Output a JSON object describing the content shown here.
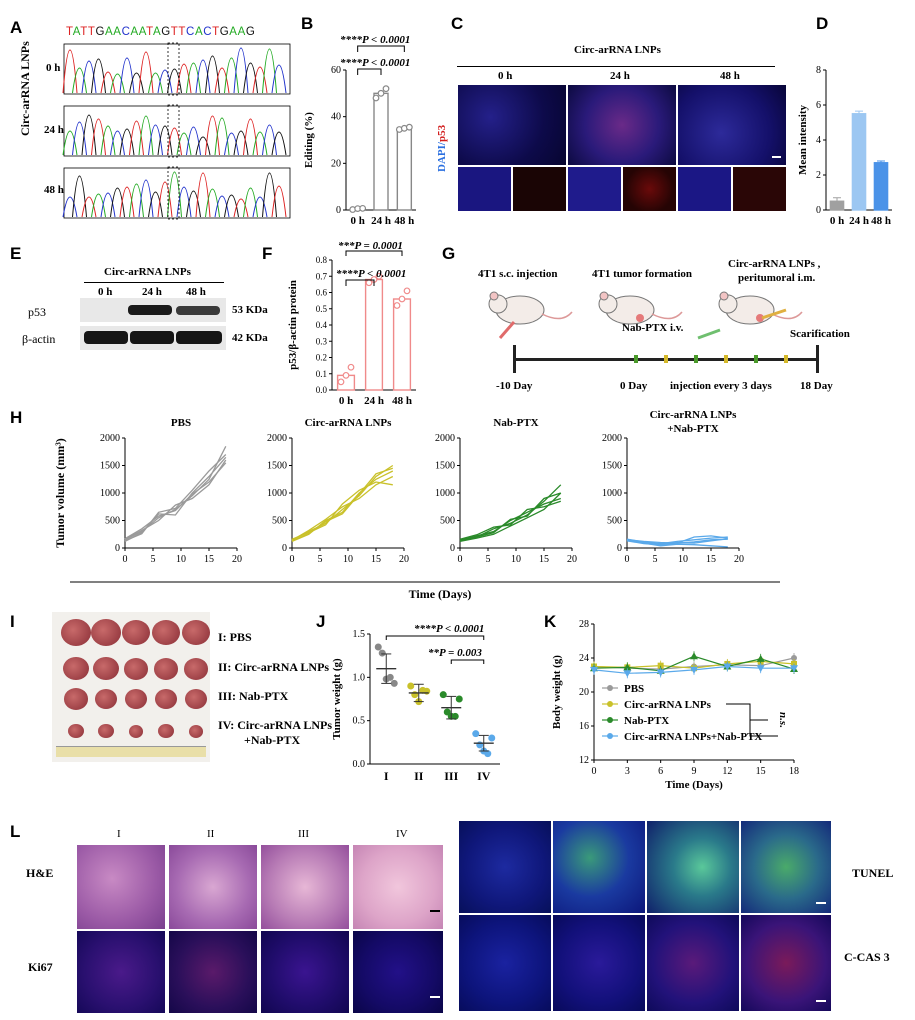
{
  "panels": {
    "A": "A",
    "B": "B",
    "C": "C",
    "D": "D",
    "E": "E",
    "F": "F",
    "G": "G",
    "H": "H",
    "I": "I",
    "J": "J",
    "K": "K",
    "L": "L"
  },
  "panelA": {
    "sequence": [
      [
        "T",
        "#d22"
      ],
      [
        "A",
        "#2a2"
      ],
      [
        "T",
        "#d22"
      ],
      [
        "T",
        "#d22"
      ],
      [
        "G",
        "#111"
      ],
      [
        "A",
        "#2a2"
      ],
      [
        "A",
        "#2a2"
      ],
      [
        "C",
        "#23c"
      ],
      [
        "A",
        "#2a2"
      ],
      [
        "A",
        "#2a2"
      ],
      [
        "T",
        "#d22"
      ],
      [
        "A",
        "#2a2"
      ],
      [
        "G",
        "#111"
      ],
      [
        "T",
        "#d22"
      ],
      [
        "T",
        "#d22"
      ],
      [
        "C",
        "#23c"
      ],
      [
        "A",
        "#2a2"
      ],
      [
        "C",
        "#23c"
      ],
      [
        "T",
        "#d22"
      ],
      [
        "G",
        "#111"
      ],
      [
        "A",
        "#2a2"
      ],
      [
        "A",
        "#2a2"
      ],
      [
        "G",
        "#111"
      ]
    ],
    "group_label": "Circ-arRNA LNPs",
    "rows": [
      "0 h",
      "24 h",
      "48 h"
    ]
  },
  "chart_data": [
    {
      "id": "B",
      "type": "bar",
      "categories": [
        "0 h",
        "24 h",
        "48 h"
      ],
      "values": [
        0.5,
        50,
        35
      ],
      "points": [
        [
          0.2,
          0.6,
          0.7
        ],
        [
          48,
          50,
          52
        ],
        [
          34.5,
          35,
          35.5
        ]
      ],
      "ylabel": "Editing (%)",
      "ylim": [
        0,
        60
      ],
      "yticks": [
        0,
        20,
        40,
        60
      ],
      "annotations": [
        "****P < 0.0001",
        "****P < 0.0001"
      ],
      "color": "#888888"
    },
    {
      "id": "D",
      "type": "bar",
      "categories": [
        "0 h",
        "24 h",
        "48 h"
      ],
      "values": [
        0.5,
        5.5,
        2.7
      ],
      "errors": [
        0.2,
        0.15,
        0.1
      ],
      "ylabel": "Mean intensity",
      "ylim": [
        0,
        8
      ],
      "yticks": [
        0,
        2,
        4,
        6,
        8
      ],
      "colors": [
        "#a0a0a0",
        "#9cc7f2",
        "#4b93e8"
      ]
    },
    {
      "id": "F",
      "type": "bar",
      "categories": [
        "0 h",
        "24 h",
        "48 h"
      ],
      "values": [
        0.09,
        0.68,
        0.56
      ],
      "points": [
        [
          0.05,
          0.09,
          0.14
        ],
        [
          0.66,
          0.68,
          0.7
        ],
        [
          0.52,
          0.56,
          0.61
        ]
      ],
      "ylabel": "p53/β-actin protein",
      "ylim": [
        0,
        0.8
      ],
      "yticks": [
        0.0,
        0.1,
        0.2,
        0.3,
        0.4,
        0.5,
        0.6,
        0.7,
        0.8
      ],
      "annotations": [
        "***P = 0.0001",
        "****P < 0.0001"
      ],
      "color": "#f08a8a"
    },
    {
      "id": "H",
      "type": "line",
      "xlabel": "Time (Days)",
      "ylabel": "Tumor volume (mm³)",
      "xlim": [
        0,
        20
      ],
      "ylim": [
        0,
        2000
      ],
      "xticks": [
        0,
        5,
        10,
        15,
        20
      ],
      "yticks": [
        0,
        500,
        1000,
        1500,
        2000
      ],
      "x": [
        0,
        3,
        6,
        9,
        12,
        15,
        18
      ],
      "groups": [
        {
          "name": "PBS",
          "color": "#9a9a9a",
          "series": [
            [
              150,
              300,
              550,
              700,
              950,
              1250,
              1850
            ],
            [
              120,
              280,
              620,
              600,
              1000,
              1300,
              1650
            ],
            [
              160,
              320,
              500,
              780,
              900,
              1150,
              1600
            ],
            [
              130,
              260,
              650,
              720,
              1050,
              1400,
              1700
            ],
            [
              170,
              350,
              580,
              680,
              980,
              1200,
              1550
            ]
          ]
        },
        {
          "name": "Circ-arRNA LNPs",
          "color": "#c9c12a",
          "series": [
            [
              150,
              300,
              450,
              700,
              950,
              1300,
              1500
            ],
            [
              120,
              250,
              500,
              650,
              1000,
              1250,
              1400
            ],
            [
              140,
              320,
              520,
              750,
              900,
              1150,
              1300
            ],
            [
              160,
              280,
              420,
              800,
              1050,
              1200,
              1150
            ],
            [
              130,
              260,
              480,
              620,
              980,
              1350,
              1450
            ]
          ]
        },
        {
          "name": "Nab-PTX",
          "color": "#2a8a2a",
          "series": [
            [
              150,
              200,
              350,
              450,
              600,
              850,
              1150
            ],
            [
              120,
              180,
              250,
              400,
              550,
              700,
              1000
            ],
            [
              140,
              220,
              300,
              500,
              650,
              800,
              900
            ],
            [
              160,
              240,
              380,
              420,
              700,
              750,
              850
            ],
            [
              130,
              200,
              280,
              520,
              580,
              900,
              1000
            ]
          ]
        },
        {
          "name": "Circ-arRNA LNPs +Nab-PTX",
          "color": "#5aa9ea",
          "series": [
            [
              150,
              120,
              100,
              90,
              110,
              150,
              160
            ],
            [
              140,
              100,
              80,
              120,
              150,
              180,
              200
            ],
            [
              160,
              110,
              70,
              100,
              90,
              130,
              170
            ],
            [
              130,
              80,
              60,
              90,
              200,
              220,
              180
            ],
            [
              150,
              90,
              40,
              70,
              60,
              40,
              20
            ]
          ]
        }
      ]
    },
    {
      "id": "J",
      "type": "scatter",
      "categories": [
        "I",
        "II",
        "III",
        "IV"
      ],
      "means": [
        1.1,
        0.82,
        0.65,
        0.24
      ],
      "sd": [
        0.17,
        0.1,
        0.13,
        0.09
      ],
      "points": [
        [
          1.35,
          1.28,
          0.98,
          1.0,
          0.93
        ],
        [
          0.9,
          0.8,
          0.72,
          0.85,
          0.84
        ],
        [
          0.8,
          0.6,
          0.55,
          0.55,
          0.75
        ],
        [
          0.35,
          0.22,
          0.15,
          0.12,
          0.3
        ]
      ],
      "colors": [
        "#888888",
        "#c9c12a",
        "#2a8a2a",
        "#5aa9ea"
      ],
      "ylabel": "Tumor weight (g)",
      "ylim": [
        0,
        1.5
      ],
      "yticks": [
        0.0,
        0.5,
        1.0,
        1.5
      ],
      "annotations": [
        "****P < 0.0001",
        "**P = 0.003"
      ]
    },
    {
      "id": "K",
      "type": "line",
      "x": [
        0,
        3,
        6,
        9,
        12,
        15,
        18
      ],
      "series": [
        {
          "name": "PBS",
          "color": "#9a9a9a",
          "marker": "circle",
          "values": [
            23,
            22.8,
            22.7,
            23,
            23.2,
            23.1,
            24
          ]
        },
        {
          "name": "Circ-arRNA LNPs",
          "color": "#c9c12a",
          "marker": "square",
          "values": [
            23,
            22.9,
            23.1,
            22.8,
            23.3,
            23.6,
            23.3
          ]
        },
        {
          "name": "Nab-PTX",
          "color": "#2a8a2a",
          "marker": "triangle",
          "values": [
            22.8,
            22.9,
            22.5,
            24.2,
            23,
            23.9,
            22.7
          ]
        },
        {
          "name": "Circ-arRNA LNPs+Nab-PTX",
          "color": "#5aa9ea",
          "marker": "triangle-down",
          "values": [
            22.6,
            22.2,
            22.3,
            22.6,
            23.0,
            22.8,
            22.8
          ]
        }
      ],
      "xlabel": "Time (Days)",
      "ylabel": "Body weight (g)",
      "xlim": [
        0,
        18
      ],
      "ylim": [
        12,
        28
      ],
      "xticks": [
        0,
        3,
        6,
        9,
        12,
        15,
        18
      ],
      "yticks": [
        12,
        16,
        20,
        24,
        28
      ],
      "annotation": "n.s."
    }
  ],
  "panelC": {
    "title": "Circ-arRNA LNPs",
    "cols": [
      "0 h",
      "24 h",
      "48 h"
    ],
    "stain_dapi": "DAPI/",
    "stain_p53": "p53"
  },
  "panelE": {
    "title": "Circ-arRNA LNPs",
    "cols": [
      "0 h",
      "24 h",
      "48 h"
    ],
    "rows": [
      "p53",
      "β-actin"
    ],
    "sizes": [
      "53 KDa",
      "42 KDa"
    ]
  },
  "panelG": {
    "steps": [
      "4T1 s.c. injection",
      "4T1 tumor formation",
      "Circ-arRNA LNPs ,",
      "peritumoral i.m."
    ],
    "nab": "Nab-PTX i.v.",
    "scarification": "Scarification",
    "timeline": [
      "-10 Day",
      "0 Day",
      "injection every 3 days",
      "18 Day"
    ]
  },
  "panelI": {
    "legend": [
      "I: PBS",
      "II: Circ-arRNA LNPs",
      "III: Nab-PTX",
      "IV: Circ-arRNA LNPs",
      "+Nab-PTX"
    ]
  },
  "panelL": {
    "cols": [
      "I",
      "II",
      "III",
      "IV"
    ],
    "rows_left": [
      "H&E",
      "Ki67"
    ],
    "rows_right": [
      "TUNEL",
      "C-CAS 3"
    ]
  }
}
